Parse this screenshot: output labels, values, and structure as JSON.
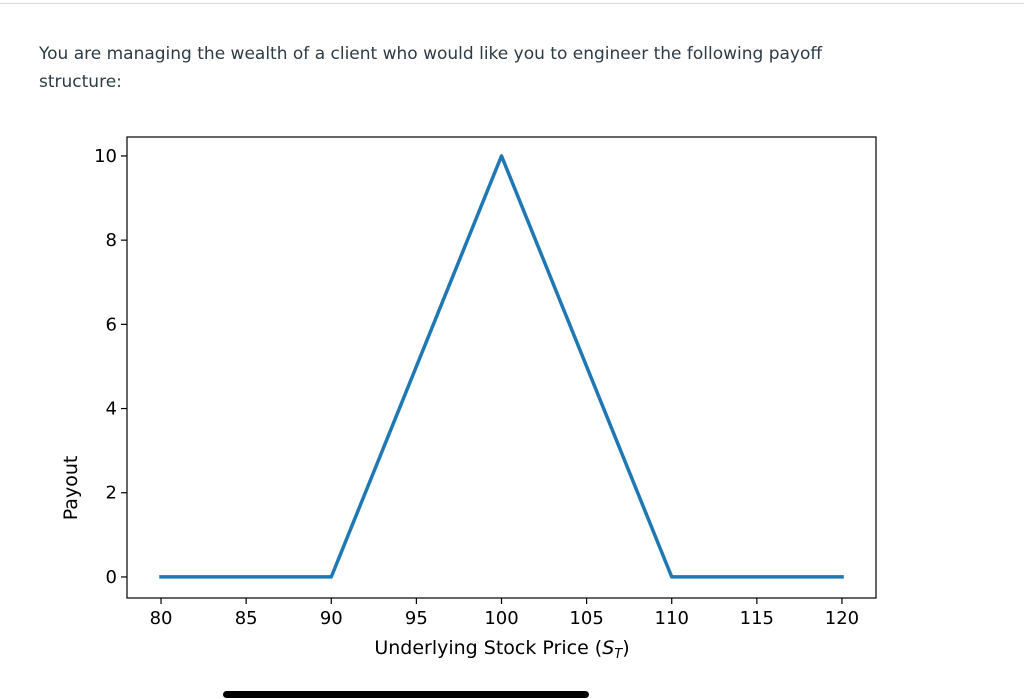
{
  "question": {
    "text_line1": "You are managing the wealth of a client who would like you to engineer the following payoff",
    "text_line2": "structure:"
  },
  "colors": {
    "line": "#1f77b4",
    "axes": "#000000",
    "text": "#2d3b45"
  },
  "chart_data": {
    "type": "line",
    "title": "",
    "xlabel": "Underlying Stock Price (S_T)",
    "xlabel_main": "Underlying Stock Price (",
    "xlabel_symbol": "S",
    "xlabel_subscript": "T",
    "xlabel_close": ")",
    "ylabel": "Payout",
    "xlim": [
      78,
      122
    ],
    "ylim": [
      -0.5,
      10.45
    ],
    "xticks": [
      80,
      85,
      90,
      95,
      100,
      105,
      110,
      115,
      120
    ],
    "yticks": [
      0,
      2,
      4,
      6,
      8,
      10
    ],
    "grid": false,
    "legend": "none",
    "series": [
      {
        "x": [
          80,
          90,
          100,
          110,
          120
        ],
        "y": [
          0,
          0,
          10,
          0,
          0
        ]
      }
    ]
  }
}
